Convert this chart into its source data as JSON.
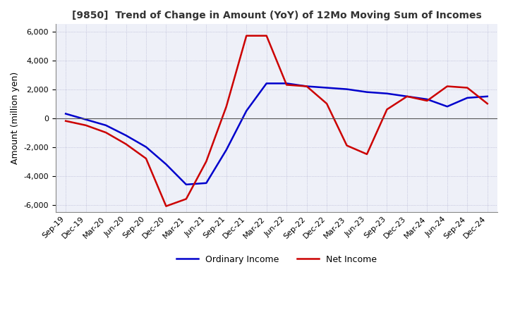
{
  "title": "[9850]  Trend of Change in Amount (YoY) of 12Mo Moving Sum of Incomes",
  "ylabel": "Amount (million yen)",
  "ylim": [
    -6500,
    6500
  ],
  "yticks": [
    -6000,
    -4000,
    -2000,
    0,
    2000,
    4000,
    6000
  ],
  "background_color": "#ffffff",
  "plot_bg_color": "#eef0f8",
  "grid_color": "#aaaacc",
  "ordinary_income_color": "#0000cc",
  "net_income_color": "#cc0000",
  "x_labels": [
    "Sep-19",
    "Dec-19",
    "Mar-20",
    "Jun-20",
    "Sep-20",
    "Dec-20",
    "Mar-21",
    "Jun-21",
    "Sep-21",
    "Dec-21",
    "Mar-22",
    "Jun-22",
    "Sep-22",
    "Dec-22",
    "Mar-23",
    "Jun-23",
    "Sep-23",
    "Dec-23",
    "Mar-24",
    "Jun-24",
    "Sep-24",
    "Dec-24"
  ],
  "ordinary_income": [
    300,
    -100,
    -500,
    -1200,
    -2000,
    -3200,
    -4600,
    -4500,
    -2200,
    500,
    2400,
    2400,
    2200,
    2100,
    2000,
    1800,
    1700,
    1500,
    1300,
    800,
    1400,
    1500
  ],
  "net_income": [
    -200,
    -500,
    -1000,
    -1800,
    -2800,
    -6100,
    -5600,
    -3000,
    800,
    5700,
    5700,
    2300,
    2200,
    1000,
    -1900,
    -2500,
    600,
    1500,
    1200,
    2200,
    2100,
    1000
  ]
}
